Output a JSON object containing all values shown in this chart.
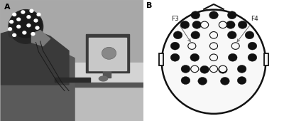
{
  "panel_a_label": "A",
  "panel_b_label": "B",
  "background_color": "#ffffff",
  "head_color": "#111111",
  "head_fill": "#f8f8f8",
  "filled_dot_color": "#111111",
  "open_dot_facecolor": "#f8f8f8",
  "dot_edge_color": "#111111",
  "f3_label": "F3",
  "f4_label": "F4",
  "photo_bg": "#888888",
  "photo_wall": "#999999",
  "photo_desk": "#cccccc",
  "photo_person_dark": "#2a2a2a",
  "photo_person_mid": "#555555",
  "photo_monitor_outer": "#444444",
  "photo_monitor_screen": "#d0d0d0",
  "photo_keyboard": "#3a3a3a"
}
